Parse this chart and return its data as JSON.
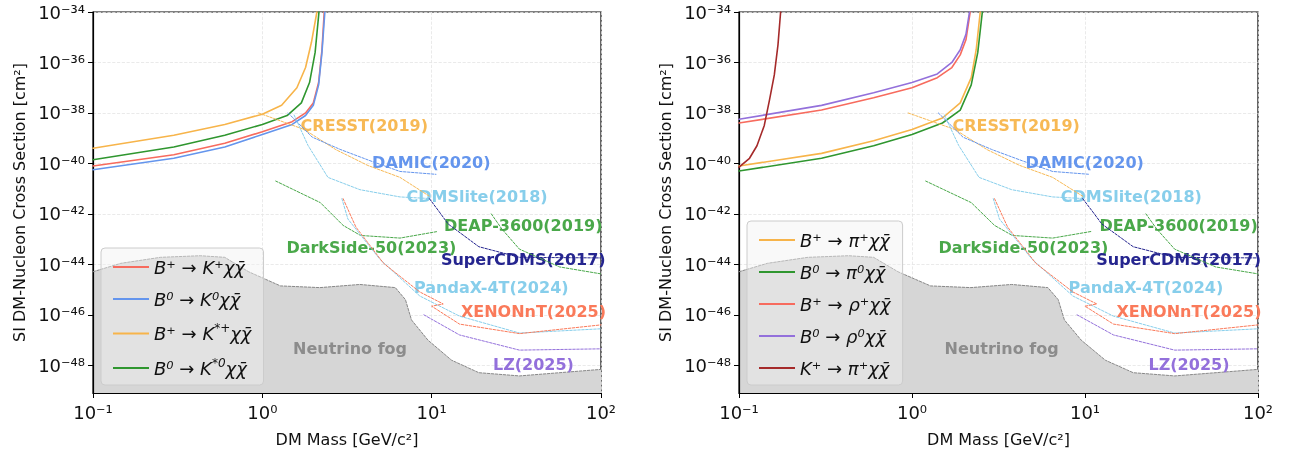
{
  "chart_data": [
    {
      "type": "line",
      "xlabel": "DM Mass [GeV/c²]",
      "ylabel": "SI DM-Nucleon Cross Section [cm²]",
      "log": "xy",
      "grid": true,
      "legend": "bottom left",
      "marker": "none",
      "xlim": [
        0.1,
        100
      ],
      "ylim": [
        8e-50,
        1e-34
      ],
      "xticks": [
        {
          "value": 0.1,
          "label": "10⁻¹"
        },
        {
          "value": 1,
          "label": "10⁰"
        },
        {
          "value": 10,
          "label": "10¹"
        },
        {
          "value": 100,
          "label": "10²"
        }
      ],
      "yticks": [
        {
          "value": 1e-48,
          "label": "10⁻⁴⁸"
        },
        {
          "value": 1e-46,
          "label": "10⁻⁴⁶"
        },
        {
          "value": 1e-44,
          "label": "10⁻⁴⁴"
        },
        {
          "value": 1e-42,
          "label": "10⁻⁴²"
        },
        {
          "value": 1e-40,
          "label": "10⁻⁴⁰"
        },
        {
          "value": 1e-38,
          "label": "10⁻³⁸"
        },
        {
          "value": 1e-36,
          "label": "10⁻³⁶"
        },
        {
          "value": 1e-34,
          "label": "10⁻³⁴"
        }
      ],
      "series": [
        {
          "name": "B⁺ → K⁺χχ̄",
          "color": "#f76b5e",
          "x": [
            0.1,
            0.3,
            0.6,
            1,
            1.5,
            1.8,
            2.0,
            2.15,
            2.25,
            2.32
          ],
          "values": [
            7.9e-41,
            2.2e-40,
            6.3e-40,
            1.8e-39,
            4.5e-39,
            1e-38,
            2.5e-38,
            1.6e-37,
            3.2e-36,
            1e-34
          ]
        },
        {
          "name": "B⁰ → K⁰χχ̄",
          "color": "#6495ed",
          "x": [
            0.1,
            0.3,
            0.6,
            1,
            1.5,
            1.8,
            2.0,
            2.15,
            2.25,
            2.34
          ],
          "values": [
            5.6e-41,
            1.6e-40,
            4.5e-40,
            1.4e-39,
            3.5e-39,
            7.9e-39,
            2e-38,
            1.3e-37,
            2.5e-36,
            1e-34
          ]
        },
        {
          "name": "B⁺ → K$^{*+}$χχ̄",
          "color": "#f7b44a",
          "x": [
            0.1,
            0.3,
            0.6,
            1,
            1.3,
            1.6,
            1.8,
            1.95,
            2.1
          ],
          "values": [
            4e-40,
            1.3e-39,
            3.5e-39,
            8.9e-39,
            2e-38,
            1e-37,
            6.3e-37,
            6.3e-36,
            1e-34
          ]
        },
        {
          "name": "B⁰ → K$^{*0}$χχ̄",
          "color": "#2f962f",
          "x": [
            0.1,
            0.3,
            0.6,
            1,
            1.4,
            1.7,
            1.9,
            2.05,
            2.16
          ],
          "values": [
            1.4e-40,
            4.5e-40,
            1.3e-39,
            3.5e-39,
            7.9e-39,
            2.5e-38,
            1.6e-37,
            2.5e-36,
            1e-34
          ]
        },
        {
          "color": "#f7b955",
          "line_style": "dashed",
          "x": [
            0.95,
            1.77,
            2.72,
            4.2,
            6.5,
            9.7
          ],
          "values": [
            1e-38,
            2.2e-39,
            3.5e-40,
            8.3e-41,
            2.8e-41,
            5e-42
          ]
        },
        {
          "color": "#6495ed",
          "line_style": "dashed",
          "x": [
            1.42,
            1.97,
            2.88,
            4.44,
            6.5,
            10.6
          ],
          "values": [
            1e-38,
            1.1e-39,
            3.6e-40,
            1.2e-40,
            4.8e-41,
            3.7e-41
          ]
        },
        {
          "color": "#87ceeb",
          "line_style": "dashed",
          "x": [
            1.54,
            1.86,
            2.44,
            3.77,
            6.5,
            9.5
          ],
          "values": [
            8.3e-39,
            5.2e-40,
            2.8e-41,
            9.1e-42,
            4.7e-42,
            4.1e-42
          ]
        },
        {
          "color": "#4aa84a",
          "line_style": "dashed",
          "x": [
            22.5,
            26,
            33,
            57,
            100
          ],
          "values": [
            1e-42,
            2.5e-43,
            4e-44,
            7.9e-45,
            4.2e-45
          ]
        },
        {
          "color": "#4aa84a",
          "line_style": "dashed",
          "x": [
            1.2,
            2.2,
            3.0,
            3.8,
            6.5,
            10.8
          ],
          "values": [
            2e-41,
            2.8e-42,
            3.5e-43,
            1.4e-43,
            1.1e-43,
            2e-43
          ]
        },
        {
          "color": "#25258f",
          "line_style": "dashed",
          "x": [
            9.7,
            11,
            12.5,
            19,
            33,
            100
          ],
          "values": [
            4e-42,
            1.3e-42,
            4e-43,
            5e-44,
            1.9e-44,
            1.8e-44
          ]
        },
        {
          "color": "#87ceeb",
          "line_style": "dashed",
          "x": [
            2.95,
            3.2,
            4.94,
            8.5,
            14.6,
            33,
            100
          ],
          "values": [
            4e-42,
            6.3e-43,
            1.6e-44,
            5.6e-46,
            8.9e-47,
            1.9e-47,
            2.8e-47
          ]
        },
        {
          "color": "#fa7a5a",
          "line_style": "dashed",
          "x": [
            3,
            3.57,
            5.2,
            8.5,
            11.7,
            10,
            14.6,
            33,
            100
          ],
          "values": [
            4e-42,
            3e-43,
            1.1e-44,
            8.1e-46,
            2.7e-46,
            2.2e-46,
            4.3e-47,
            1.8e-47,
            4e-47
          ]
        },
        {
          "color": "#9370db",
          "line_style": "dashed",
          "x": [
            9,
            14.6,
            33,
            100
          ],
          "values": [
            1e-46,
            1.6e-47,
            4e-48,
            4.5e-48
          ]
        },
        {
          "type": "area",
          "color": "#d6d6d6",
          "line_style": "dashed",
          "x": [
            0.1,
            0.146,
            0.25,
            0.43,
            0.6,
            0.83,
            1.28,
            2.19,
            3.77,
            6.1,
            7,
            7.6,
            9.5,
            13.1,
            19,
            33,
            100
          ],
          "values": [
            5.1e-45,
            1.1e-44,
            1.9e-44,
            2.2e-44,
            1.9e-44,
            5.1e-45,
            1.4e-45,
            1.2e-45,
            1.6e-45,
            1.2e-45,
            4e-46,
            6.3e-47,
            1e-47,
            1.6e-48,
            5.1e-49,
            3.8e-49,
            6.9e-49
          ]
        }
      ],
      "annotations": [
        "CRESST(2019)",
        "DAMIC(2020)",
        "CDMSlite(2018)",
        "DEAP-3600(2019)",
        "DarkSide-50(2023)",
        "SuperCDMS(2017)",
        "PandaX-4T(2024)",
        "XENONnT(2025)",
        "LZ(2025)",
        "Neutrino fog"
      ]
    },
    {
      "type": "line",
      "xlabel": "DM Mass [GeV/c²]",
      "ylabel": "SI DM-Nucleon Cross Section [cm²]",
      "log": "xy",
      "grid": true,
      "legend": "bottom left",
      "marker": "none",
      "xlim": [
        0.1,
        100
      ],
      "ylim": [
        8e-50,
        1e-34
      ],
      "xticks": [
        {
          "value": 0.1,
          "label": "10⁻¹"
        },
        {
          "value": 1,
          "label": "10⁰"
        },
        {
          "value": 10,
          "label": "10¹"
        },
        {
          "value": 100,
          "label": "10²"
        }
      ],
      "yticks": [
        {
          "value": 1e-48,
          "label": "10⁻⁴⁸"
        },
        {
          "value": 1e-46,
          "label": "10⁻⁴⁶"
        },
        {
          "value": 1e-44,
          "label": "10⁻⁴⁴"
        },
        {
          "value": 1e-42,
          "label": "10⁻⁴²"
        },
        {
          "value": 1e-40,
          "label": "10⁻⁴⁰"
        },
        {
          "value": 1e-38,
          "label": "10⁻³⁸"
        },
        {
          "value": 1e-36,
          "label": "10⁻³⁶"
        },
        {
          "value": 1e-34,
          "label": "10⁻³⁴"
        }
      ],
      "series": [
        {
          "name": "B⁺ → π⁺χχ̄",
          "color": "#f7b44a",
          "x": [
            0.1,
            0.3,
            0.6,
            1,
            1.5,
            1.9,
            2.2,
            2.35,
            2.48
          ],
          "values": [
            7.9e-41,
            2.5e-40,
            7.9e-40,
            2.2e-39,
            6.3e-39,
            2.5e-38,
            2.5e-37,
            3.2e-36,
            1e-34
          ]
        },
        {
          "name": "B⁰ → π⁰χχ̄",
          "color": "#2f962f",
          "x": [
            0.1,
            0.3,
            0.6,
            1,
            1.5,
            1.9,
            2.2,
            2.4,
            2.55
          ],
          "values": [
            5e-41,
            1.6e-40,
            5e-40,
            1.4e-39,
            4e-39,
            1.3e-38,
            1.3e-37,
            2.5e-36,
            1e-34
          ]
        },
        {
          "name": "B⁺ → ρ⁺χχ̄",
          "color": "#f76b5e",
          "x": [
            0.1,
            0.3,
            0.6,
            1,
            1.4,
            1.7,
            1.9,
            2.05,
            2.17
          ],
          "values": [
            4e-39,
            1.3e-38,
            4e-38,
            1e-37,
            2.5e-37,
            6.3e-37,
            2e-36,
            7.9e-36,
            1e-34
          ]
        },
        {
          "name": "B⁰ → ρ⁰χχ̄",
          "color": "#9370db",
          "x": [
            0.1,
            0.3,
            0.6,
            1,
            1.4,
            1.7,
            1.9,
            2.05,
            2.15
          ],
          "values": [
            5.6e-39,
            2e-38,
            6.3e-38,
            1.6e-37,
            3.5e-37,
            1e-36,
            3.2e-36,
            1.3e-35,
            1e-34
          ]
        },
        {
          "name": "K⁺ → π⁺χχ̄",
          "color": "#a52a2a",
          "x": [
            0.1,
            0.115,
            0.127,
            0.14,
            0.15,
            0.16,
            0.168,
            0.174
          ],
          "values": [
            7.1e-41,
            1.6e-40,
            5e-40,
            3.2e-39,
            3.2e-38,
            3.2e-37,
            5e-36,
            1e-34
          ]
        },
        {
          "color": "#f7b955",
          "line_style": "dashed",
          "x": [
            0.95,
            1.77,
            2.72,
            4.2,
            6.5,
            9.7
          ],
          "values": [
            1e-38,
            2.2e-39,
            3.5e-40,
            8.3e-41,
            2.8e-41,
            5e-42
          ]
        },
        {
          "color": "#6495ed",
          "line_style": "dashed",
          "x": [
            1.42,
            1.97,
            2.88,
            4.44,
            6.5,
            10.6
          ],
          "values": [
            1e-38,
            1.1e-39,
            3.6e-40,
            1.2e-40,
            4.8e-41,
            3.7e-41
          ]
        },
        {
          "color": "#87ceeb",
          "line_style": "dashed",
          "x": [
            1.54,
            1.86,
            2.44,
            3.77,
            6.5,
            9.5
          ],
          "values": [
            8.3e-39,
            5.2e-40,
            2.8e-41,
            9.1e-42,
            4.7e-42,
            4.1e-42
          ]
        },
        {
          "color": "#4aa84a",
          "line_style": "dashed",
          "x": [
            22.5,
            26,
            33,
            57,
            100
          ],
          "values": [
            1e-42,
            2.5e-43,
            4e-44,
            7.9e-45,
            4.2e-45
          ]
        },
        {
          "color": "#4aa84a",
          "line_style": "dashed",
          "x": [
            1.2,
            2.2,
            3.0,
            3.8,
            6.5,
            10.8
          ],
          "values": [
            2e-41,
            2.8e-42,
            3.5e-43,
            1.4e-43,
            1.1e-43,
            2e-43
          ]
        },
        {
          "color": "#25258f",
          "line_style": "dashed",
          "x": [
            9.7,
            11,
            12.5,
            19,
            33,
            100
          ],
          "values": [
            4e-42,
            1.3e-42,
            4e-43,
            5e-44,
            1.9e-44,
            1.8e-44
          ]
        },
        {
          "color": "#87ceeb",
          "line_style": "dashed",
          "x": [
            2.95,
            3.2,
            4.94,
            8.5,
            14.6,
            33,
            100
          ],
          "values": [
            4e-42,
            6.3e-43,
            1.6e-44,
            5.6e-46,
            8.9e-47,
            1.9e-47,
            2.8e-47
          ]
        },
        {
          "color": "#fa7a5a",
          "line_style": "dashed",
          "x": [
            3,
            3.57,
            5.2,
            8.5,
            11.7,
            10,
            14.6,
            33,
            100
          ],
          "values": [
            4e-42,
            3e-43,
            1.1e-44,
            8.1e-46,
            2.7e-46,
            2.2e-46,
            4.3e-47,
            1.8e-47,
            4e-47
          ]
        },
        {
          "color": "#9370db",
          "line_style": "dashed",
          "x": [
            9,
            14.6,
            33,
            100
          ],
          "values": [
            1e-46,
            1.6e-47,
            4e-48,
            4.5e-48
          ]
        },
        {
          "type": "area",
          "color": "#d6d6d6",
          "line_style": "dashed",
          "x": [
            0.1,
            0.146,
            0.25,
            0.43,
            0.6,
            0.83,
            1.28,
            2.19,
            3.77,
            6.1,
            7,
            7.6,
            9.5,
            13.1,
            19,
            33,
            100
          ],
          "values": [
            5.1e-45,
            1.1e-44,
            1.9e-44,
            2.2e-44,
            1.9e-44,
            5.1e-45,
            1.4e-45,
            1.2e-45,
            1.6e-45,
            1.2e-45,
            4e-46,
            6.3e-47,
            1e-47,
            1.6e-48,
            5.1e-49,
            3.8e-49,
            6.9e-49
          ]
        }
      ],
      "annotations": [
        "CRESST(2019)",
        "DAMIC(2020)",
        "CDMSlite(2018)",
        "DEAP-3600(2019)",
        "DarkSide-50(2023)",
        "SuperCDMS(2017)",
        "PandaX-4T(2024)",
        "XENONnT(2025)",
        "LZ(2025)",
        "Neutrino fog"
      ]
    }
  ]
}
